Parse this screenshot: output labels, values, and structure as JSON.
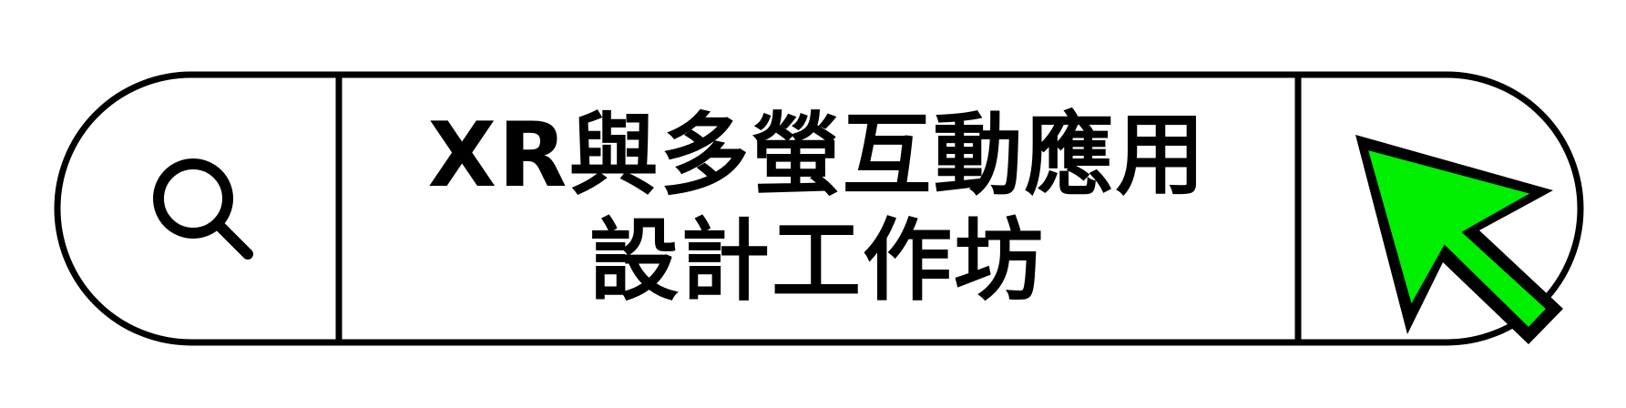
{
  "title": {
    "line1": "XR與多螢互動應用",
    "line2": "設計工作坊"
  },
  "icons": {
    "left": "search-icon",
    "right": "cursor-arrow-icon"
  },
  "colors": {
    "outline": "#000000",
    "background": "#ffffff",
    "cursor_fill": "#00ee00"
  }
}
